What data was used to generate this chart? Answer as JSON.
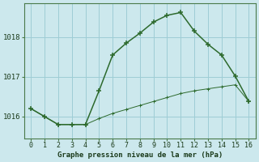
{
  "xlabel": "Graphe pression niveau de la mer (hPa)",
  "background_color": "#cce8ed",
  "grid_color": "#9ecdd5",
  "line_color": "#2d6a2d",
  "x_main": [
    0,
    1,
    2,
    3,
    4,
    5,
    6,
    7,
    8,
    9,
    10,
    11,
    12,
    13,
    14,
    15,
    16
  ],
  "y_main": [
    1016.2,
    1016.0,
    1015.8,
    1015.8,
    1015.8,
    1016.65,
    1017.55,
    1017.85,
    1018.1,
    1018.38,
    1018.55,
    1018.62,
    1018.15,
    1017.82,
    1017.55,
    1017.02,
    1016.38
  ],
  "x_secondary": [
    0,
    1,
    2,
    3,
    4,
    5,
    6,
    7,
    8,
    9,
    10,
    11,
    12,
    13,
    14,
    15,
    16
  ],
  "y_secondary": [
    1016.2,
    1016.0,
    1015.8,
    1015.8,
    1015.8,
    1015.95,
    1016.08,
    1016.18,
    1016.28,
    1016.38,
    1016.48,
    1016.58,
    1016.65,
    1016.7,
    1016.75,
    1016.8,
    1016.38
  ],
  "ylim": [
    1015.45,
    1018.85
  ],
  "yticks": [
    1016,
    1017,
    1018
  ],
  "xticks": [
    0,
    1,
    2,
    3,
    4,
    5,
    6,
    7,
    8,
    9,
    10,
    11,
    12,
    13,
    14,
    15,
    16
  ]
}
